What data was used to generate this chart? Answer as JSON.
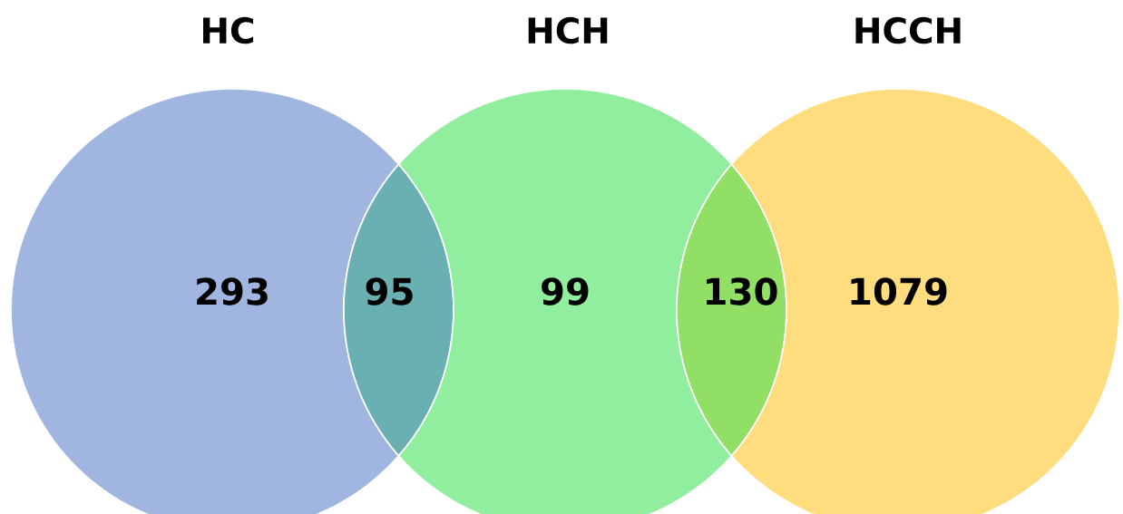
{
  "chart_data": {
    "type": "other",
    "annotations": [
      "HC",
      "HCH",
      "HCCH"
    ],
    "categories": [
      null,
      null,
      null,
      null,
      null
    ],
    "values": [
      293,
      95,
      99,
      130,
      1079
    ],
    "colors": [
      "#a0b5e0",
      "#6aafb1",
      "#92ee9f",
      "#91e065",
      "#ffdd7e"
    ],
    "data_labels": true
  }
}
